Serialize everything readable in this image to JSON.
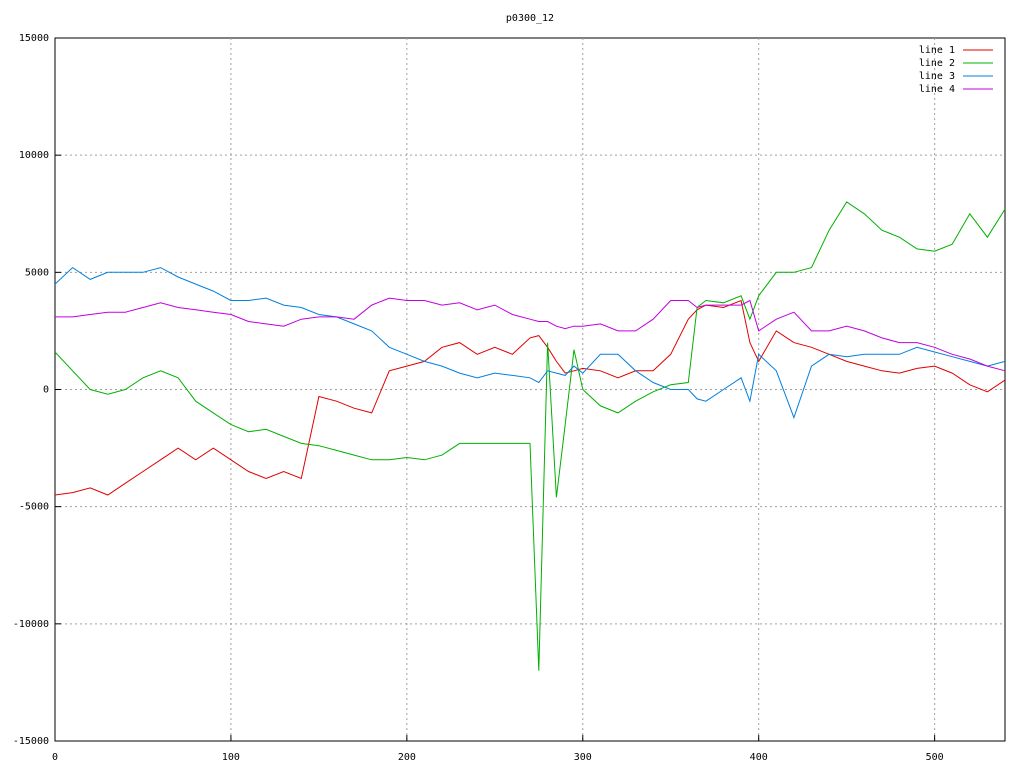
{
  "chart_data": {
    "type": "line",
    "title": "p0300_12",
    "x": [
      0,
      10,
      20,
      30,
      40,
      50,
      60,
      70,
      80,
      90,
      100,
      110,
      120,
      130,
      140,
      150,
      160,
      170,
      180,
      190,
      200,
      210,
      220,
      230,
      240,
      250,
      260,
      270,
      275,
      280,
      285,
      290,
      295,
      300,
      310,
      320,
      330,
      340,
      350,
      360,
      365,
      370,
      380,
      390,
      395,
      400,
      410,
      420,
      430,
      440,
      450,
      460,
      470,
      480,
      490,
      500,
      510,
      520,
      530,
      540
    ],
    "series": [
      {
        "name": "line 1",
        "color": "#e00000",
        "values": [
          -4500,
          -4400,
          -4200,
          -4500,
          -4000,
          -3500,
          -3000,
          -2500,
          -3000,
          -2500,
          -3000,
          -3500,
          -3800,
          -3500,
          -3800,
          -300,
          -500,
          -800,
          -1000,
          800,
          1000,
          1200,
          1800,
          2000,
          1500,
          1800,
          1500,
          2200,
          2300,
          1800,
          1200,
          700,
          800,
          900,
          800,
          500,
          800,
          800,
          1500,
          3000,
          3400,
          3600,
          3500,
          3800,
          2000,
          1200,
          2500,
          2000,
          1800,
          1500,
          1200,
          1000,
          800,
          700,
          900,
          1000,
          700,
          200,
          -100,
          400
        ]
      },
      {
        "name": "line 2",
        "color": "#00b000",
        "values": [
          1600,
          800,
          0,
          -200,
          0,
          500,
          800,
          500,
          -500,
          -1000,
          -1500,
          -1800,
          -1700,
          -2000,
          -2300,
          -2400,
          -2600,
          -2800,
          -3000,
          -3000,
          -2900,
          -3000,
          -2800,
          -2300,
          -2300,
          -2300,
          -2300,
          -2300,
          -12000,
          2000,
          -4600,
          -1500,
          1700,
          0,
          -700,
          -1000,
          -500,
          -100,
          200,
          300,
          3500,
          3800,
          3700,
          4000,
          3000,
          4000,
          5000,
          5000,
          5200,
          6800,
          8000,
          7500,
          6800,
          6500,
          6000,
          5900,
          6200,
          7500,
          6500,
          7700
        ]
      },
      {
        "name": "line 3",
        "color": "#0080e0",
        "values": [
          4500,
          5200,
          4700,
          5000,
          5000,
          5000,
          5200,
          4800,
          4500,
          4200,
          3800,
          3800,
          3900,
          3600,
          3500,
          3200,
          3100,
          2800,
          2500,
          1800,
          1500,
          1200,
          1000,
          700,
          500,
          700,
          600,
          500,
          300,
          800,
          700,
          600,
          1000,
          700,
          1500,
          1500,
          800,
          300,
          0,
          0,
          -400,
          -500,
          0,
          500,
          -500,
          1500,
          800,
          -1200,
          1000,
          1500,
          1400,
          1500,
          1500,
          1500,
          1800,
          1600,
          1400,
          1200,
          1000,
          1200
        ]
      },
      {
        "name": "line 4",
        "color": "#c000e0",
        "values": [
          3100,
          3100,
          3200,
          3300,
          3300,
          3500,
          3700,
          3500,
          3400,
          3300,
          3200,
          2900,
          2800,
          2700,
          3000,
          3100,
          3100,
          3000,
          3600,
          3900,
          3800,
          3800,
          3600,
          3700,
          3400,
          3600,
          3200,
          3000,
          2900,
          2900,
          2700,
          2600,
          2700,
          2700,
          2800,
          2500,
          2500,
          3000,
          3800,
          3800,
          3500,
          3600,
          3600,
          3600,
          3800,
          2500,
          3000,
          3300,
          2500,
          2500,
          2700,
          2500,
          2200,
          2000,
          2000,
          1800,
          1500,
          1300,
          1000,
          800
        ]
      }
    ],
    "xlim": [
      0,
      540
    ],
    "xticks": [
      0,
      100,
      200,
      300,
      400,
      500
    ],
    "ylim": [
      -15000,
      15000
    ],
    "yticks": [
      -15000,
      -10000,
      -5000,
      0,
      5000,
      10000,
      15000
    ],
    "grid": true,
    "legend": "top-right"
  }
}
